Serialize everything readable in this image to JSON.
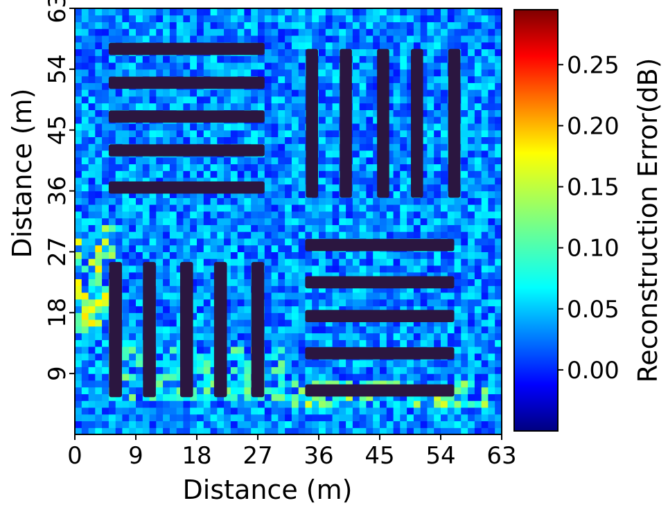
{
  "chart_data": {
    "type": "heatmap",
    "title": "",
    "xlabel": "Distance (m)",
    "ylabel": "Distance (m)",
    "colorbar_label": "Reconstruction Error(dB)",
    "xlim": [
      0,
      63
    ],
    "ylim": [
      0,
      63
    ],
    "x_ticks": [
      0,
      9,
      18,
      27,
      36,
      45,
      54,
      63
    ],
    "y_ticks": [
      9,
      18,
      27,
      36,
      45,
      54,
      63
    ],
    "colorbar_range": [
      -0.05,
      0.295
    ],
    "colorbar_ticks": [
      "0.00",
      "0.05",
      "0.10",
      "0.15",
      "0.20",
      "0.25"
    ],
    "colormap": "jet",
    "background_error_level": 0.0,
    "bar_color": "#2b1640",
    "grid": false,
    "bar_groups": [
      {
        "name": "top-left",
        "orientation": "horizontal",
        "count": 5,
        "extent": [
          5,
          28
        ],
        "centers": [
          57,
          52,
          47,
          42,
          36.5
        ],
        "bar_width": 1.8
      },
      {
        "name": "top-right",
        "orientation": "vertical",
        "count": 5,
        "extent": [
          35,
          57
        ],
        "centers": [
          35,
          40,
          45.5,
          50.5,
          56
        ],
        "bar_width": 1.8
      },
      {
        "name": "bottom-left",
        "orientation": "vertical",
        "count": 5,
        "extent": [
          5.5,
          25.5
        ],
        "centers": [
          6,
          11,
          16.5,
          21.5,
          27
        ],
        "bar_width": 1.9
      },
      {
        "name": "bottom-right",
        "orientation": "horizontal",
        "count": 5,
        "extent": [
          34,
          56
        ],
        "centers": [
          28,
          22.5,
          17.5,
          12,
          6.5
        ],
        "bar_width": 1.8
      }
    ],
    "high_error_regions": [
      {
        "name": "left-edge",
        "x": [
          0,
          5
        ],
        "y": [
          15,
          30
        ],
        "level": 0.16
      },
      {
        "name": "below-bottom-left-bars",
        "x": [
          5,
          30
        ],
        "y": [
          5,
          12
        ],
        "level": 0.12
      },
      {
        "name": "bottom-right-base",
        "x": [
          32,
          60
        ],
        "y": [
          4,
          7
        ],
        "level": 0.14
      }
    ]
  }
}
